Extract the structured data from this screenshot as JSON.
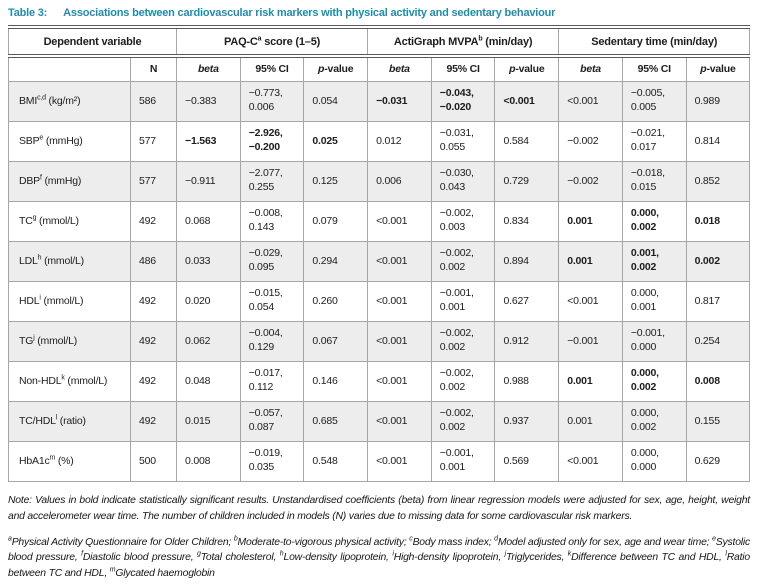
{
  "title": {
    "label": "Table 3:",
    "text": "Associations between cardiovascular risk markers with physical activity and sedentary behaviour"
  },
  "colors": {
    "accent_teal": "#1f8cac",
    "row_shade": "#ededed",
    "grid_line": "#a6a6a6",
    "heavy_line": "#595959"
  },
  "table": {
    "col_groups": [
      {
        "pre": "Dependent variable",
        "sup": "",
        "post": "",
        "span": 2
      },
      {
        "pre": "PAQ-C",
        "sup": "a",
        "post": " score (1–5)",
        "span": 3
      },
      {
        "pre": "ActiGraph MVPA",
        "sup": "b",
        "post": " (min/day)",
        "span": 3
      },
      {
        "pre": "Sedentary time (min/day)",
        "sup": "",
        "post": "",
        "span": 3
      }
    ],
    "sub_headers": {
      "n": "N",
      "beta": "beta",
      "ci": "95% CI",
      "p_italic": "p",
      "p_rest": "-value"
    },
    "rows": [
      {
        "label": {
          "name": "BMI",
          "sup": "c,d",
          "unit": "(kg/m²)"
        },
        "n": "586",
        "paq": {
          "beta": "−0.383",
          "ci": [
            "−0.773,",
            "0.006"
          ],
          "p": "0.054",
          "bold": false
        },
        "mvpa": {
          "beta": "−0.031",
          "ci": [
            "−0.043,",
            "−0.020"
          ],
          "p": "<0.001",
          "bold": true
        },
        "sed": {
          "beta": "<0.001",
          "ci": [
            "−0.005,",
            "0.005"
          ],
          "p": "0.989",
          "bold": false
        }
      },
      {
        "label": {
          "name": "SBP",
          "sup": "e",
          "unit": "(mmHg)"
        },
        "n": "577",
        "paq": {
          "beta": "−1.563",
          "ci": [
            "−2.926,",
            "−0.200"
          ],
          "p": "0.025",
          "bold": true
        },
        "mvpa": {
          "beta": "0.012",
          "ci": [
            "−0.031,",
            "0.055"
          ],
          "p": "0.584",
          "bold": false
        },
        "sed": {
          "beta": "−0.002",
          "ci": [
            "−0.021,",
            "0.017"
          ],
          "p": "0.814",
          "bold": false
        }
      },
      {
        "label": {
          "name": "DBP",
          "sup": "f",
          "unit": "(mmHg)"
        },
        "n": "577",
        "paq": {
          "beta": "−0.911",
          "ci": [
            "−2.077,",
            "0.255"
          ],
          "p": "0.125",
          "bold": false
        },
        "mvpa": {
          "beta": "0.006",
          "ci": [
            "−0.030,",
            "0.043"
          ],
          "p": "0.729",
          "bold": false
        },
        "sed": {
          "beta": "−0.002",
          "ci": [
            "−0.018,",
            "0.015"
          ],
          "p": "0.852",
          "bold": false
        }
      },
      {
        "label": {
          "name": "TC",
          "sup": "g",
          "unit": "(mmol/L)"
        },
        "n": "492",
        "paq": {
          "beta": "0.068",
          "ci": [
            "−0.008,",
            "0.143"
          ],
          "p": "0.079",
          "bold": false
        },
        "mvpa": {
          "beta": "<0.001",
          "ci": [
            "−0.002,",
            "0.003"
          ],
          "p": "0.834",
          "bold": false
        },
        "sed": {
          "beta": "0.001",
          "ci": [
            "0.000,",
            "0.002"
          ],
          "p": "0.018",
          "bold": true
        }
      },
      {
        "label": {
          "name": "LDL",
          "sup": "h",
          "unit": "(mmol/L)"
        },
        "n": "486",
        "paq": {
          "beta": "0.033",
          "ci": [
            "−0.029,",
            "0.095"
          ],
          "p": "0.294",
          "bold": false
        },
        "mvpa": {
          "beta": "<0.001",
          "ci": [
            "−0.002,",
            "0.002"
          ],
          "p": "0.894",
          "bold": false
        },
        "sed": {
          "beta": "0.001",
          "ci": [
            "0.001,",
            "0.002"
          ],
          "p": "0.002",
          "bold": true
        }
      },
      {
        "label": {
          "name": "HDL",
          "sup": "i",
          "unit": "(mmol/L)"
        },
        "n": "492",
        "paq": {
          "beta": "0.020",
          "ci": [
            "−0.015,",
            "0.054"
          ],
          "p": "0.260",
          "bold": false
        },
        "mvpa": {
          "beta": "<0.001",
          "ci": [
            "−0.001,",
            "0.001"
          ],
          "p": "0.627",
          "bold": false
        },
        "sed": {
          "beta": "<0.001",
          "ci": [
            "0.000,",
            "0.001"
          ],
          "p": "0.817",
          "bold": false
        }
      },
      {
        "label": {
          "name": "TG",
          "sup": "j",
          "unit": "(mmol/L)"
        },
        "n": "492",
        "paq": {
          "beta": "0.062",
          "ci": [
            "−0.004,",
            "0.129"
          ],
          "p": "0.067",
          "bold": false
        },
        "mvpa": {
          "beta": "<0.001",
          "ci": [
            "−0.002,",
            "0.002"
          ],
          "p": "0.912",
          "bold": false
        },
        "sed": {
          "beta": "−0.001",
          "ci": [
            "−0.001,",
            "0.000"
          ],
          "p": "0.254",
          "bold": false
        }
      },
      {
        "label": {
          "name": "Non-HDL",
          "sup": "k",
          "unit": "(mmol/L)"
        },
        "n": "492",
        "paq": {
          "beta": "0.048",
          "ci": [
            "−0.017,",
            "0.112"
          ],
          "p": "0.146",
          "bold": false
        },
        "mvpa": {
          "beta": "<0.001",
          "ci": [
            "−0.002,",
            "0.002"
          ],
          "p": "0.988",
          "bold": false
        },
        "sed": {
          "beta": "0.001",
          "ci": [
            "0.000,",
            "0.002"
          ],
          "p": "0.008",
          "bold": true
        }
      },
      {
        "label": {
          "name": "TC/HDL",
          "sup": "l",
          "unit": "(ratio)"
        },
        "n": "492",
        "paq": {
          "beta": "0.015",
          "ci": [
            "−0.057,",
            "0.087"
          ],
          "p": "0.685",
          "bold": false
        },
        "mvpa": {
          "beta": "<0.001",
          "ci": [
            "−0.002,",
            "0.002"
          ],
          "p": "0.937",
          "bold": false
        },
        "sed": {
          "beta": "0.001",
          "ci": [
            "0.000,",
            "0.002"
          ],
          "p": "0.155",
          "bold": false
        }
      },
      {
        "label": {
          "name": "HbA1c",
          "sup": "m",
          "unit": "(%)"
        },
        "n": "500",
        "paq": {
          "beta": "0.008",
          "ci": [
            "−0.019,",
            "0.035"
          ],
          "p": "0.548",
          "bold": false
        },
        "mvpa": {
          "beta": "<0.001",
          "ci": [
            "−0.001,",
            "0.001"
          ],
          "p": "0.569",
          "bold": false
        },
        "sed": {
          "beta": "<0.001",
          "ci": [
            "0.000,",
            "0.000"
          ],
          "p": "0.629",
          "bold": false
        }
      }
    ]
  },
  "note": "Note: Values in bold indicate statistically significant results. Unstandardised coefficients (beta) from linear regression models were adjusted for sex, age, height, weight and accelerometer wear time. The number of children included in models (N) varies due to missing data for some cardiovascular risk markers.",
  "footnotes": [
    {
      "sup": "a",
      "text": "Physical Activity Questionnaire for Older Children; "
    },
    {
      "sup": "b",
      "text": "Moderate-to-vigorous physical activity; "
    },
    {
      "sup": "c",
      "text": "Body mass index; "
    },
    {
      "sup": "d",
      "text": "Model adjusted only for sex, age and wear time; "
    },
    {
      "sup": "e",
      "text": "Systolic blood pressure, "
    },
    {
      "sup": "f",
      "text": "Diastolic blood pressure, "
    },
    {
      "sup": "g",
      "text": "Total cholesterol, "
    },
    {
      "sup": "h",
      "text": "Low-density lipoprotein, "
    },
    {
      "sup": "i",
      "text": "High-density lipoprotein, "
    },
    {
      "sup": "j",
      "text": "Triglycerides, "
    },
    {
      "sup": "k",
      "text": "Difference between TC and HDL, "
    },
    {
      "sup": "l",
      "text": "Ratio between TC and HDL, "
    },
    {
      "sup": "m",
      "text": "Glycated haemoglobin"
    }
  ]
}
